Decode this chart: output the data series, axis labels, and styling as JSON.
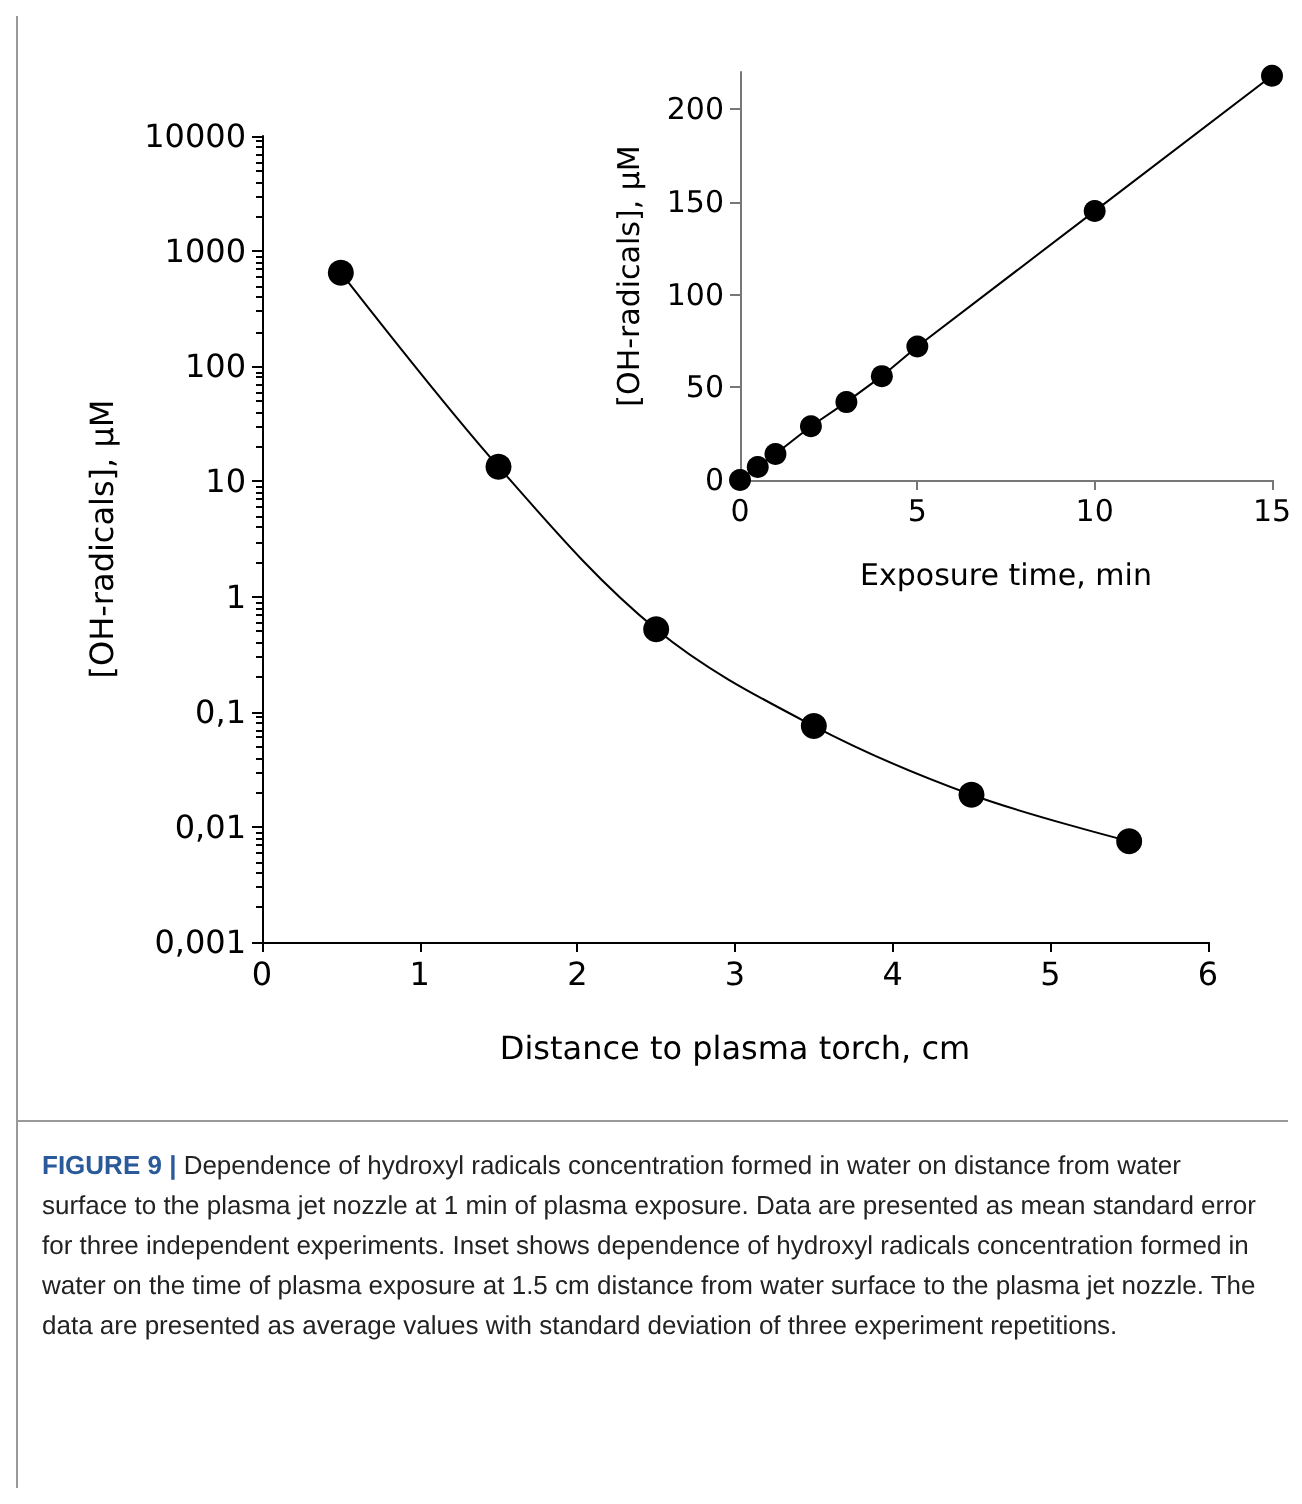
{
  "chart_data": [
    {
      "type": "line",
      "xlabel": "Distance to plasma torch, cm",
      "ylabel": "[OH-radicals], μM",
      "x": [
        0.5,
        1.5,
        2.5,
        3.5,
        4.5,
        5.5
      ],
      "values": [
        650,
        13.4,
        0.52,
        0.075,
        0.019,
        0.0075
      ],
      "color": "#000000",
      "marker": "circle",
      "log": "y",
      "grid": false,
      "xlim": [
        0,
        6
      ],
      "xticks": [
        0,
        1,
        2,
        3,
        4,
        5,
        6
      ],
      "ylim": [
        0.001,
        10000
      ],
      "yticks": [
        {
          "value": 0.001,
          "label": "0,001"
        },
        {
          "value": 0.01,
          "label": "0,01"
        },
        {
          "value": 0.1,
          "label": "0,1"
        },
        1,
        10,
        100,
        1000,
        10000
      ],
      "annotations": [
        "FIGURE 9 | Dependence of hydroxyl radicals concentration formed in water on distance from water surface to the plasma jet nozzle at 1 min of plasma exposure. Data are presented as mean standard error for three independent experiments. Inset shows dependence of hydroxyl radicals concentration formed in water on the time of plasma exposure at 1.5 cm distance from water surface to the plasma jet nozzle. The data are presented as average values with standard deviation of three experiment repetitions."
      ]
    },
    {
      "type": "line",
      "xlabel": "Exposure time, min",
      "ylabel": "[OH-radicals], μM",
      "x": [
        0,
        0.5,
        1,
        2,
        3,
        4,
        5,
        10,
        15
      ],
      "values": [
        0,
        7,
        14,
        29,
        42,
        56,
        72,
        145,
        218
      ],
      "color": "#000000",
      "marker": "circle",
      "grid": false,
      "xlim": [
        0,
        15
      ],
      "xticks": [
        0,
        5,
        10,
        15
      ],
      "ylim": [
        0,
        220
      ],
      "yticks": [
        0,
        50,
        100,
        150,
        200
      ]
    }
  ]
}
